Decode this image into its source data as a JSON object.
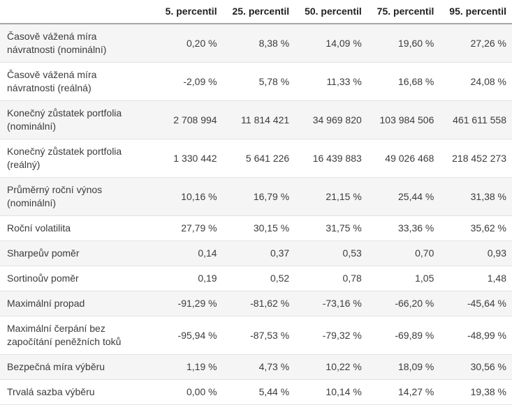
{
  "chart_data": {
    "type": "table",
    "column_headers": [
      "5. percentil",
      "25. percentil",
      "50. percentil",
      "75. percentil",
      "95. percentil"
    ],
    "rows": [
      {
        "label": "Časově vážená míra návratnosti (nominální)",
        "values": [
          "0,20 %",
          "8,38 %",
          "14,09 %",
          "19,60 %",
          "27,26 %"
        ]
      },
      {
        "label": "Časově vážená míra návratnosti (reálná)",
        "values": [
          "-2,09 %",
          "5,78 %",
          "11,33 %",
          "16,68 %",
          "24,08 %"
        ]
      },
      {
        "label": "Konečný zůstatek portfolia (nominální)",
        "values": [
          "2 708 994",
          "11 814 421",
          "34 969 820",
          "103 984 506",
          "461 611 558"
        ]
      },
      {
        "label": "Konečný zůstatek portfolia (reálný)",
        "values": [
          "1 330 442",
          "5 641 226",
          "16 439 883",
          "49 026 468",
          "218 452 273"
        ]
      },
      {
        "label": "Průměrný roční výnos (nominální)",
        "values": [
          "10,16 %",
          "16,79 %",
          "21,15 %",
          "25,44 %",
          "31,38 %"
        ]
      },
      {
        "label": "Roční volatilita",
        "values": [
          "27,79 %",
          "30,15 %",
          "31,75 %",
          "33,36 %",
          "35,62 %"
        ]
      },
      {
        "label": "Sharpeův poměr",
        "values": [
          "0,14",
          "0,37",
          "0,53",
          "0,70",
          "0,93"
        ]
      },
      {
        "label": "Sortinoův poměr",
        "values": [
          "0,19",
          "0,52",
          "0,78",
          "1,05",
          "1,48"
        ]
      },
      {
        "label": "Maximální propad",
        "values": [
          "-91,29 %",
          "-81,62 %",
          "-73,16 %",
          "-66,20 %",
          "-45,64 %"
        ]
      },
      {
        "label": "Maximální čerpání bez započítání peněžních toků",
        "values": [
          "-95,94 %",
          "-87,53 %",
          "-79,32 %",
          "-69,89 %",
          "-48,99 %"
        ]
      },
      {
        "label": "Bezpečná míra výběru",
        "values": [
          "1,19 %",
          "4,73 %",
          "10,22 %",
          "18,09 %",
          "30,56 %"
        ]
      },
      {
        "label": "Trvalá sazba výběru",
        "values": [
          "0,00 %",
          "5,44 %",
          "10,14 %",
          "14,27 %",
          "19,38 %"
        ]
      }
    ],
    "layout": {
      "legend": "none",
      "grid": "horizontal-dividers",
      "stripe_rows": "odd"
    },
    "colors": {
      "row_stripe": "#f5f5f5",
      "row_divider": "#e2e2e2",
      "header_border": "#a6a6a6",
      "header_text": "#1f1f1f",
      "body_text": "#3b3b3b",
      "background": "#ffffff"
    }
  }
}
